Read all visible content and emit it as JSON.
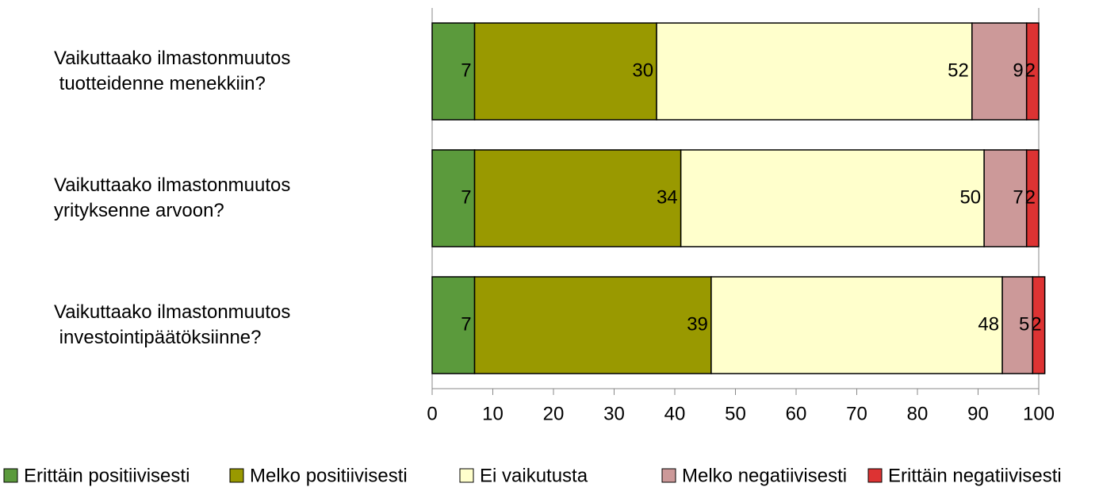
{
  "chart_data": {
    "type": "stacked_barh",
    "categories": [
      "Vaikuttaako ilmastonmuutos\n tuotteidenne menekkiin?",
      "Vaikuttaako ilmastonmuutos\nyrityksenne arvoon?",
      "Vaikuttaako ilmastonmuutos\n investointipäätöksiinne?"
    ],
    "series": [
      {
        "name": "Erittäin positiivisesti",
        "color": "#5b9a3c",
        "values": [
          7,
          7,
          7
        ]
      },
      {
        "name": "Melko positiivisesti",
        "color": "#999900",
        "values": [
          30,
          34,
          39
        ]
      },
      {
        "name": "Ei vaikutusta",
        "color": "#ffffcc",
        "values": [
          52,
          50,
          48
        ]
      },
      {
        "name": "Melko negatiivisesti",
        "color": "#cc9999",
        "values": [
          9,
          7,
          5
        ]
      },
      {
        "name": "Erittäin negatiivisesti",
        "color": "#dd3333",
        "values": [
          2,
          2,
          2
        ]
      }
    ],
    "xlim": [
      0,
      100
    ],
    "xticks": [
      0,
      10,
      20,
      30,
      40,
      50,
      60,
      70,
      80,
      90,
      100
    ],
    "legend": "bottom"
  }
}
